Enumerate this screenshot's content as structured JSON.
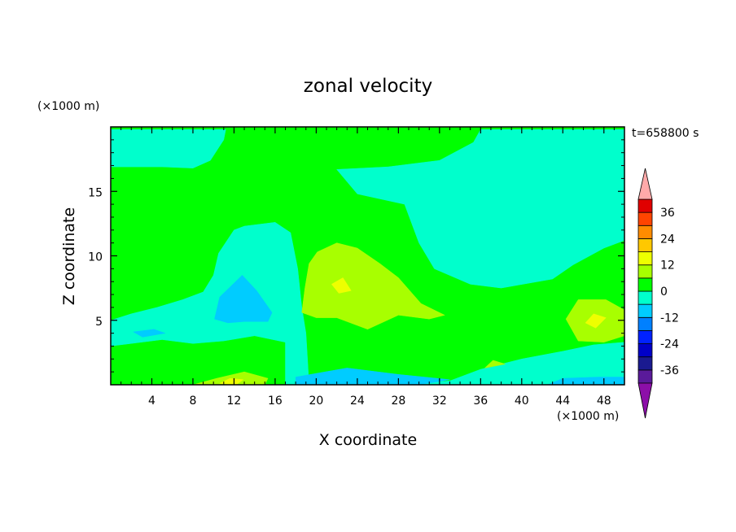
{
  "chart_data": {
    "type": "heatmap",
    "title": "zonal velocity",
    "xlabel": "X coordinate",
    "ylabel": "Z coordinate",
    "x_unit": "(×1000 m)",
    "y_unit": "(×1000 m)",
    "time_label": "t=658800 s",
    "xlim": [
      0,
      50
    ],
    "ylim": [
      0,
      20
    ],
    "x_ticks": [
      4,
      8,
      12,
      16,
      20,
      24,
      28,
      32,
      36,
      40,
      44,
      48
    ],
    "y_ticks": [
      5,
      10,
      15
    ],
    "colorbar": {
      "levels": [
        -42,
        -36,
        -30,
        -24,
        -18,
        -12,
        -6,
        0,
        6,
        12,
        18,
        24,
        30,
        36,
        42
      ],
      "tick_labels": [
        "-36",
        "-24",
        "-12",
        "0",
        "12",
        "24",
        "36"
      ],
      "tick_values": [
        -36,
        -24,
        -12,
        0,
        12,
        24,
        36
      ],
      "colors": [
        "#5a1a9a",
        "#1a1a90",
        "#0000c8",
        "#0022ff",
        "#0080ff",
        "#00ccff",
        "#00ffcc",
        "#00ff00",
        "#a8ff00",
        "#eeff00",
        "#ffc800",
        "#ff8c00",
        "#ff4400",
        "#e00000"
      ],
      "under_color": "#8c0fa8",
      "over_color": "#ffaaaa"
    },
    "regions": [
      {
        "level": 0,
        "description": "background",
        "value_range": [
          0,
          6
        ]
      },
      {
        "level": -6,
        "value_range": [
          -6,
          0
        ],
        "polygons": [
          [
            [
              0,
              19.8
            ],
            [
              0,
              16.9
            ],
            [
              5,
              16.9
            ],
            [
              8,
              16.8
            ],
            [
              9.7,
              17.4
            ],
            [
              11,
              19
            ],
            [
              11.2,
              19.8
            ]
          ],
          [
            [
              36,
              19.8
            ],
            [
              35.3,
              18.8
            ],
            [
              32,
              17.4
            ],
            [
              27,
              16.9
            ],
            [
              22,
              16.7
            ],
            [
              24,
              14.8
            ],
            [
              28.6,
              14
            ],
            [
              30,
              11
            ],
            [
              31.5,
              9
            ],
            [
              35,
              7.8
            ],
            [
              38,
              7.5
            ],
            [
              43,
              8.2
            ],
            [
              45,
              9.3
            ],
            [
              48,
              10.6
            ],
            [
              50,
              11.2
            ],
            [
              50,
              19.8
            ]
          ],
          [
            [
              12,
              12
            ],
            [
              13,
              12.3
            ],
            [
              16,
              12.6
            ],
            [
              17.5,
              11.8
            ],
            [
              18.2,
              9
            ],
            [
              18.6,
              6
            ],
            [
              19,
              4
            ],
            [
              19.3,
              0
            ],
            [
              17,
              0
            ],
            [
              17,
              3.3
            ],
            [
              14,
              3.8
            ],
            [
              11,
              3.4
            ],
            [
              8,
              3.2
            ],
            [
              5,
              3.5
            ],
            [
              2,
              3.2
            ],
            [
              0,
              3
            ],
            [
              0,
              5
            ],
            [
              2,
              5.5
            ],
            [
              4.5,
              6
            ],
            [
              7,
              6.6
            ],
            [
              9,
              7.2
            ],
            [
              10,
              8.5
            ],
            [
              10.5,
              10.2
            ]
          ],
          [
            [
              17,
              0
            ],
            [
              19,
              0
            ],
            [
              24,
              0
            ],
            [
              28,
              0
            ],
            [
              33,
              0.3
            ],
            [
              36,
              1.2
            ],
            [
              40,
              2
            ],
            [
              44,
              2.6
            ],
            [
              47,
              3.1
            ],
            [
              50,
              3.3
            ],
            [
              50,
              0
            ]
          ]
        ]
      },
      {
        "level": -12,
        "value_range": [
          -12,
          -6
        ],
        "polygons": [
          [
            [
              10.1,
              5.1
            ],
            [
              10.6,
              6.8
            ],
            [
              12.8,
              8.5
            ],
            [
              14.2,
              7.3
            ],
            [
              15.7,
              5.6
            ],
            [
              15.3,
              4.9
            ],
            [
              13,
              4.9
            ],
            [
              11.4,
              4.8
            ]
          ],
          [
            [
              2.2,
              4.1
            ],
            [
              4.2,
              4.3
            ],
            [
              5.3,
              4
            ],
            [
              3.1,
              3.7
            ]
          ],
          [
            [
              18,
              0
            ],
            [
              18,
              0.6
            ],
            [
              23,
              1.3
            ],
            [
              28,
              0.8
            ],
            [
              33,
              0.4
            ],
            [
              30,
              0
            ]
          ],
          [
            [
              42.5,
              0
            ],
            [
              44,
              0.5
            ],
            [
              47.5,
              0.6
            ],
            [
              50,
              0.6
            ],
            [
              50,
              0
            ]
          ]
        ]
      },
      {
        "level": 6,
        "value_range": [
          6,
          12
        ],
        "polygons": [
          [
            [
              19.3,
              9.4
            ],
            [
              20.1,
              10.3
            ],
            [
              22,
              11
            ],
            [
              24,
              10.6
            ],
            [
              26.2,
              9.4
            ],
            [
              28,
              8.3
            ],
            [
              30.2,
              6.3
            ],
            [
              32.5,
              5.4
            ],
            [
              31,
              5.1
            ],
            [
              28,
              5.4
            ],
            [
              25,
              4.3
            ],
            [
              22,
              5.2
            ],
            [
              20,
              5.2
            ],
            [
              18.6,
              5.6
            ],
            [
              18.9,
              7.5
            ]
          ],
          [
            [
              44.3,
              5.1
            ],
            [
              45.5,
              6.6
            ],
            [
              48.2,
              6.6
            ],
            [
              50,
              5.8
            ],
            [
              50,
              3.8
            ],
            [
              48,
              3.3
            ],
            [
              45.5,
              3.4
            ]
          ],
          [
            [
              8,
              0
            ],
            [
              10.3,
              0.5
            ],
            [
              13,
              1
            ],
            [
              15.3,
              0.5
            ],
            [
              15,
              0
            ]
          ],
          [
            [
              36.4,
              1.3
            ],
            [
              37.2,
              1.9
            ],
            [
              38.4,
              1.6
            ]
          ]
        ]
      },
      {
        "level": 12,
        "value_range": [
          12,
          18
        ],
        "polygons": [
          [
            [
              21.5,
              7.8
            ],
            [
              22.6,
              8.3
            ],
            [
              23.4,
              7.3
            ],
            [
              22.2,
              7.1
            ]
          ],
          [
            [
              46.2,
              4.8
            ],
            [
              47,
              5.5
            ],
            [
              48.2,
              5.2
            ],
            [
              47.2,
              4.4
            ]
          ],
          [
            [
              10.6,
              0.1
            ],
            [
              11.6,
              0.5
            ],
            [
              12.9,
              0.4
            ],
            [
              12.2,
              0
            ]
          ]
        ]
      }
    ]
  }
}
